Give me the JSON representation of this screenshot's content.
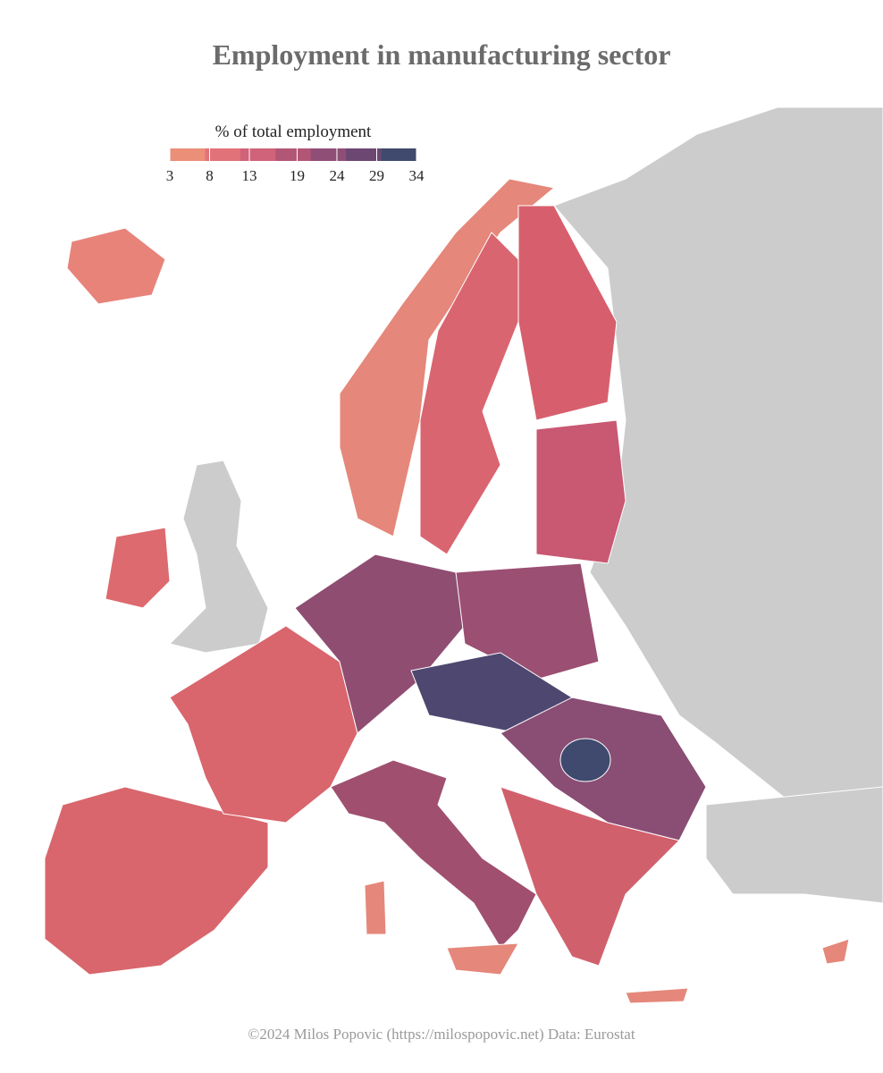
{
  "header": {
    "title": "Employment in manufacturing sector"
  },
  "legend": {
    "title": "% of total employment",
    "ticks": [
      3,
      8,
      13,
      19,
      24,
      29,
      34
    ],
    "colors": [
      "#eb8f78",
      "#e2727a",
      "#d0627a",
      "#b25676",
      "#8f4e76",
      "#6c4772",
      "#3f4a6e"
    ]
  },
  "footer": {
    "credit": "©2024 Milos Popovic (https://milospopovic.net) Data: Eurostat"
  }
}
